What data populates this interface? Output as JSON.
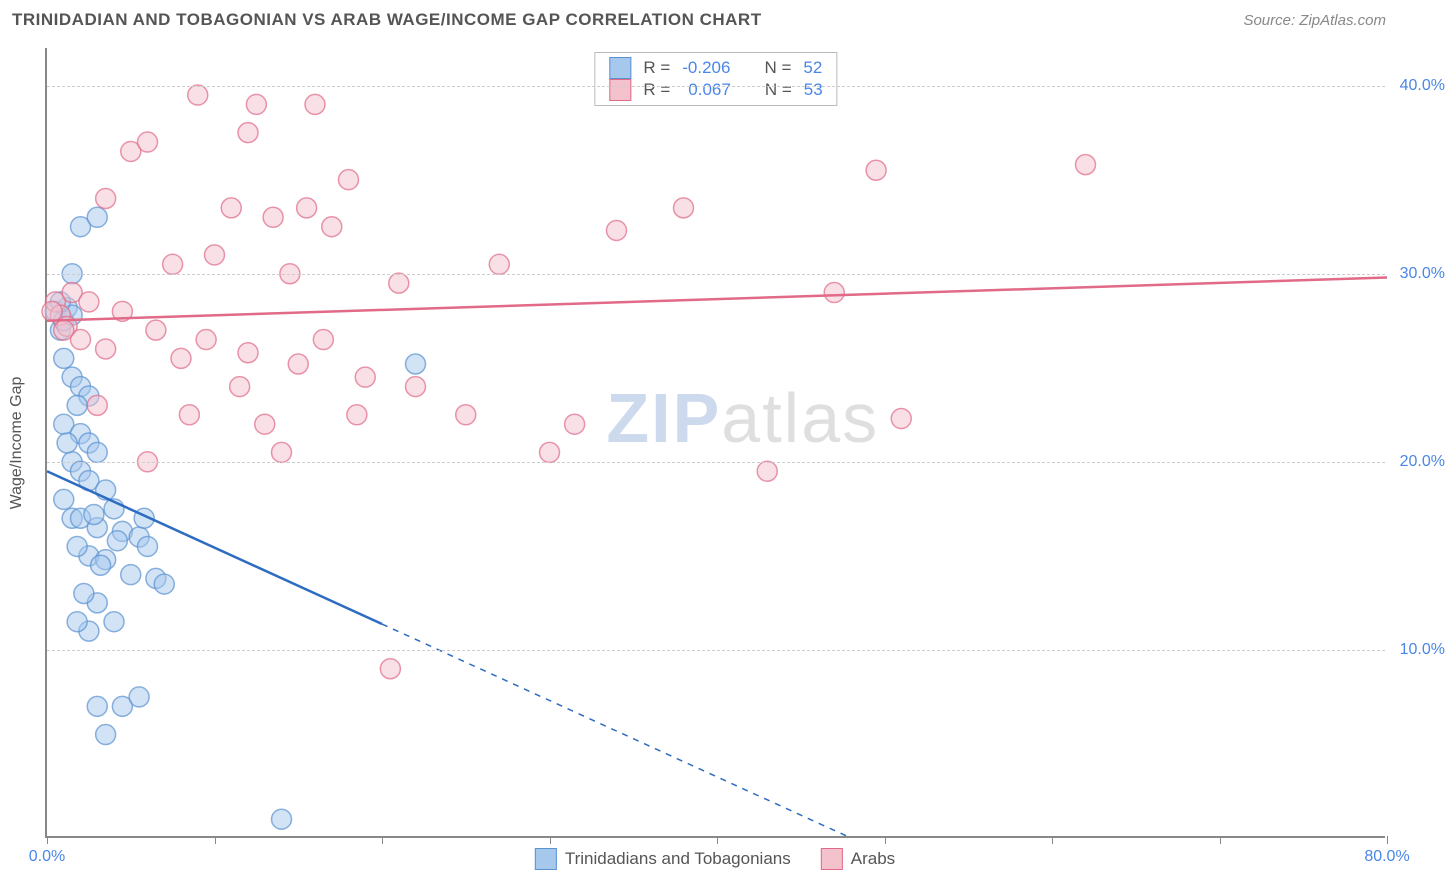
{
  "header": {
    "title": "TRINIDADIAN AND TOBAGONIAN VS ARAB WAGE/INCOME GAP CORRELATION CHART",
    "source": "Source: ZipAtlas.com"
  },
  "chart": {
    "type": "scatter",
    "ylabel": "Wage/Income Gap",
    "xlim": [
      0,
      80
    ],
    "ylim": [
      0,
      42
    ],
    "xticks": [
      0,
      10,
      20,
      30,
      40,
      50,
      60,
      70,
      80
    ],
    "xtick_labels": {
      "0": "0.0%",
      "80": "80.0%"
    },
    "yticks": [
      10,
      20,
      30,
      40
    ],
    "ytick_labels": [
      "10.0%",
      "20.0%",
      "30.0%",
      "40.0%"
    ],
    "grid_color": "#cccccc",
    "background_color": "#ffffff",
    "axis_color": "#888888",
    "marker_radius": 10,
    "marker_opacity": 0.5,
    "marker_stroke_width": 1.5,
    "series": [
      {
        "name": "Trinidadians and Tobagonians",
        "color_fill": "#a6c8ed",
        "color_stroke": "#5a92d0",
        "R": "-0.206",
        "N": "52",
        "trend": {
          "x1": 0,
          "y1": 19.5,
          "x2": 48,
          "y2": 0,
          "solid_until_x": 20,
          "line_color": "#2d6cc0",
          "line_width": 2.5
        },
        "points": [
          [
            0.5,
            28
          ],
          [
            0.8,
            27
          ],
          [
            1.0,
            27.5
          ],
          [
            1.2,
            28.2
          ],
          [
            1.5,
            27.8
          ],
          [
            1.0,
            25.5
          ],
          [
            1.5,
            24.5
          ],
          [
            2.0,
            24.0
          ],
          [
            2.5,
            23.5
          ],
          [
            1.8,
            23.0
          ],
          [
            1.0,
            22.0
          ],
          [
            2.0,
            21.5
          ],
          [
            2.5,
            21.0
          ],
          [
            3.0,
            20.5
          ],
          [
            1.5,
            20.0
          ],
          [
            2.0,
            19.5
          ],
          [
            2.5,
            19.0
          ],
          [
            3.5,
            18.5
          ],
          [
            1.0,
            18.0
          ],
          [
            4.0,
            17.5
          ],
          [
            1.5,
            17.0
          ],
          [
            2.0,
            17.0
          ],
          [
            3.0,
            16.5
          ],
          [
            4.5,
            16.3
          ],
          [
            5.5,
            16.0
          ],
          [
            6.0,
            15.5
          ],
          [
            2.5,
            15.0
          ],
          [
            3.5,
            14.8
          ],
          [
            5.0,
            14.0
          ],
          [
            6.5,
            13.8
          ],
          [
            7.0,
            13.5
          ],
          [
            3.0,
            12.5
          ],
          [
            4.0,
            11.5
          ],
          [
            2.5,
            11.0
          ],
          [
            3.0,
            7.0
          ],
          [
            4.5,
            7.0
          ],
          [
            5.5,
            7.5
          ],
          [
            3.5,
            5.5
          ],
          [
            14.0,
            1.0
          ],
          [
            2.0,
            32.5
          ],
          [
            22.0,
            25.2
          ],
          [
            3.0,
            33.0
          ],
          [
            1.5,
            30.0
          ],
          [
            0.8,
            28.5
          ],
          [
            1.2,
            21.0
          ],
          [
            2.8,
            17.2
          ],
          [
            1.8,
            15.5
          ],
          [
            3.2,
            14.5
          ],
          [
            5.8,
            17.0
          ],
          [
            4.2,
            15.8
          ],
          [
            2.2,
            13.0
          ],
          [
            1.8,
            11.5
          ]
        ]
      },
      {
        "name": "Arabs",
        "color_fill": "#f4c2cd",
        "color_stroke": "#e06a87",
        "R": "0.067",
        "N": "53",
        "trend": {
          "x1": 0,
          "y1": 27.5,
          "x2": 80,
          "y2": 29.8,
          "solid_until_x": 80,
          "line_color": "#e06a87",
          "line_width": 2.5
        },
        "points": [
          [
            5.0,
            36.5
          ],
          [
            9.0,
            39.5
          ],
          [
            12.5,
            39.0
          ],
          [
            16.0,
            39.0
          ],
          [
            18.0,
            35.0
          ],
          [
            3.5,
            34.0
          ],
          [
            11.0,
            33.5
          ],
          [
            13.5,
            33.0
          ],
          [
            17.0,
            32.5
          ],
          [
            10.0,
            31.0
          ],
          [
            14.5,
            30.0
          ],
          [
            21.0,
            29.5
          ],
          [
            27.0,
            30.5
          ],
          [
            34.0,
            32.3
          ],
          [
            0.5,
            28.5
          ],
          [
            0.8,
            27.8
          ],
          [
            1.2,
            27.2
          ],
          [
            2.0,
            26.5
          ],
          [
            3.5,
            26.0
          ],
          [
            8.0,
            25.5
          ],
          [
            12.0,
            25.8
          ],
          [
            15.0,
            25.2
          ],
          [
            19.0,
            24.5
          ],
          [
            3.0,
            23.0
          ],
          [
            8.5,
            22.5
          ],
          [
            13.0,
            22.0
          ],
          [
            18.5,
            22.5
          ],
          [
            6.0,
            20.0
          ],
          [
            30.0,
            20.5
          ],
          [
            31.5,
            22.0
          ],
          [
            49.5,
            35.5
          ],
          [
            62.0,
            35.8
          ],
          [
            38.0,
            33.5
          ],
          [
            47.0,
            29.0
          ],
          [
            43.0,
            19.5
          ],
          [
            51.0,
            22.3
          ],
          [
            20.5,
            9.0
          ],
          [
            1.5,
            29.0
          ],
          [
            4.5,
            28.0
          ],
          [
            6.5,
            27.0
          ],
          [
            9.5,
            26.5
          ],
          [
            11.5,
            24.0
          ],
          [
            16.5,
            26.5
          ],
          [
            22.0,
            24.0
          ],
          [
            25.0,
            22.5
          ],
          [
            14.0,
            20.5
          ],
          [
            6.0,
            37.0
          ],
          [
            0.3,
            28.0
          ],
          [
            1.0,
            27.0
          ],
          [
            2.5,
            28.5
          ],
          [
            15.5,
            33.5
          ],
          [
            12.0,
            37.5
          ],
          [
            7.5,
            30.5
          ]
        ]
      }
    ],
    "legend_top": {
      "r_label": "R =",
      "n_label": "N ="
    },
    "legend_bottom_labels": [
      "Trinidadians and Tobagonians",
      "Arabs"
    ],
    "watermark": {
      "zip": "ZIP",
      "atlas": "atlas"
    }
  }
}
